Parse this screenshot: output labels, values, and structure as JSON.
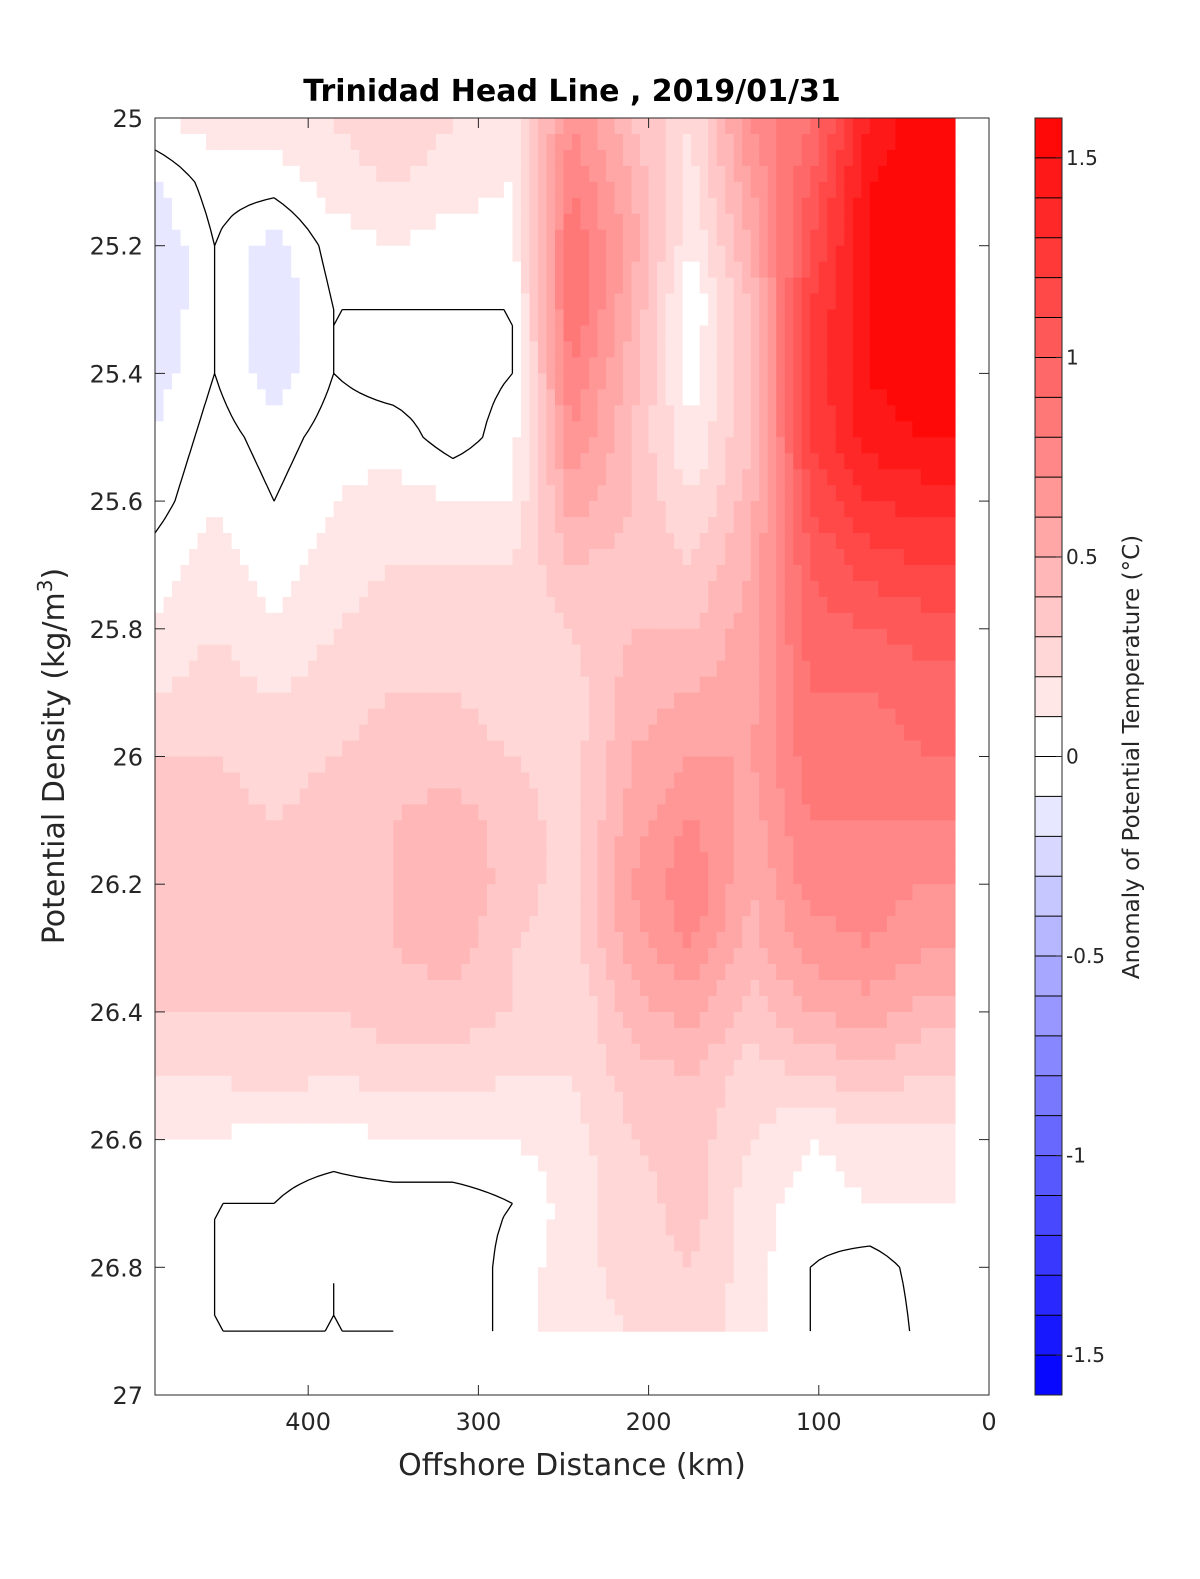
{
  "chart_data": {
    "type": "heatmap",
    "subtype": "filled-contour",
    "title": "Trinidad Head Line , 2019/01/31",
    "xlabel": "Offshore Distance (km)",
    "ylabel_base": "Potential Density (kg/m",
    "ylabel_sup": "3",
    "ylabel_close": ")",
    "xlim": [
      490,
      0
    ],
    "ylim": [
      25,
      27
    ],
    "x_reversed": true,
    "y_reversed": true,
    "xticks": [
      400,
      300,
      200,
      100,
      0
    ],
    "yticks": [
      25,
      25.2,
      25.4,
      25.6,
      25.8,
      26,
      26.2,
      26.4,
      26.6,
      26.8,
      27
    ],
    "ytick_labels": [
      "25",
      "25.2",
      "25.4",
      "25.6",
      "25.8",
      "26",
      "26.2",
      "26.4",
      "26.6",
      "26.8",
      "27"
    ],
    "data_x_range": [
      490,
      20
    ],
    "data_y_range": [
      25,
      26.9
    ],
    "x_nodes": [
      490,
      455,
      420,
      385,
      350,
      315,
      280,
      245,
      210,
      175,
      140,
      105,
      70,
      35
    ],
    "y_nodes": [
      25.0,
      25.1,
      25.2,
      25.3,
      25.4,
      25.5,
      25.6,
      25.7,
      25.8,
      25.9,
      26.0,
      26.1,
      26.2,
      26.3,
      26.4,
      26.5,
      26.6,
      26.7,
      26.8,
      26.9
    ],
    "values": [
      [
        0.1,
        0.15,
        0.15,
        0.2,
        0.3,
        0.2,
        0.1,
        0.7,
        0.4,
        0.2,
        0.7,
        0.9,
        1.4,
        1.6
      ],
      [
        -0.1,
        0.05,
        0.05,
        0.15,
        0.2,
        0.15,
        0.1,
        0.8,
        0.5,
        0.15,
        0.6,
        1.0,
        1.5,
        1.6
      ],
      [
        -0.2,
        0.0,
        -0.15,
        0.05,
        0.1,
        0.05,
        0.05,
        0.9,
        0.55,
        0.1,
        0.5,
        1.1,
        1.5,
        1.6
      ],
      [
        -0.2,
        0.0,
        -0.2,
        0.0,
        0.0,
        0.0,
        0.0,
        0.9,
        0.5,
        0.0,
        0.4,
        1.2,
        1.5,
        1.6
      ],
      [
        -0.15,
        0.0,
        -0.15,
        0.0,
        -0.05,
        -0.05,
        0.0,
        0.8,
        0.45,
        0.05,
        0.4,
        1.2,
        1.5,
        1.6
      ],
      [
        -0.1,
        0.05,
        -0.05,
        0.05,
        0.05,
        -0.05,
        0.05,
        0.7,
        0.4,
        0.1,
        0.4,
        1.2,
        1.45,
        1.5
      ],
      [
        -0.05,
        0.1,
        0.0,
        0.1,
        0.15,
        0.1,
        0.1,
        0.55,
        0.4,
        0.2,
        0.45,
        1.1,
        1.3,
        1.35
      ],
      [
        0.05,
        0.15,
        0.05,
        0.15,
        0.2,
        0.2,
        0.2,
        0.4,
        0.35,
        0.3,
        0.5,
        1.0,
        1.15,
        1.2
      ],
      [
        0.1,
        0.2,
        0.1,
        0.2,
        0.25,
        0.25,
        0.2,
        0.3,
        0.4,
        0.4,
        0.55,
        0.95,
        1.0,
        1.05
      ],
      [
        0.2,
        0.25,
        0.2,
        0.25,
        0.3,
        0.3,
        0.25,
        0.25,
        0.45,
        0.5,
        0.55,
        0.9,
        0.9,
        0.95
      ],
      [
        0.3,
        0.3,
        0.25,
        0.3,
        0.35,
        0.35,
        0.3,
        0.25,
        0.5,
        0.6,
        0.6,
        0.85,
        0.85,
        0.9
      ],
      [
        0.35,
        0.35,
        0.3,
        0.35,
        0.4,
        0.45,
        0.35,
        0.25,
        0.55,
        0.7,
        0.55,
        0.8,
        0.8,
        0.8
      ],
      [
        0.4,
        0.35,
        0.35,
        0.4,
        0.4,
        0.5,
        0.35,
        0.25,
        0.6,
        0.8,
        0.5,
        0.75,
        0.75,
        0.7
      ],
      [
        0.4,
        0.35,
        0.35,
        0.35,
        0.4,
        0.45,
        0.3,
        0.25,
        0.55,
        0.7,
        0.45,
        0.65,
        0.7,
        0.6
      ],
      [
        0.3,
        0.3,
        0.3,
        0.3,
        0.35,
        0.35,
        0.3,
        0.2,
        0.45,
        0.55,
        0.35,
        0.5,
        0.55,
        0.45
      ],
      [
        0.2,
        0.2,
        0.25,
        0.2,
        0.25,
        0.25,
        0.2,
        0.2,
        0.35,
        0.4,
        0.25,
        0.3,
        0.35,
        0.3
      ],
      [
        0.1,
        0.1,
        0.05,
        0.05,
        0.1,
        0.1,
        0.1,
        0.15,
        0.3,
        0.35,
        0.2,
        0.1,
        0.15,
        0.15
      ],
      [
        0.05,
        0.0,
        0.0,
        -0.05,
        -0.05,
        -0.05,
        0.0,
        0.15,
        0.25,
        0.35,
        0.15,
        0.05,
        0.1,
        0.1
      ],
      [
        0.05,
        0.0,
        -0.05,
        0.0,
        -0.05,
        -0.1,
        0.05,
        0.15,
        0.25,
        0.3,
        0.15,
        0.0,
        -0.05,
        0.05
      ],
      [
        0.05,
        0.0,
        0.0,
        0.0,
        0.0,
        -0.1,
        0.05,
        0.15,
        0.2,
        0.25,
        0.15,
        0.0,
        -0.1,
        0.05
      ]
    ],
    "zero_contour": true,
    "colorbar": {
      "label": "Anomaly of Potential Temperature (°C)",
      "range": [
        -1.6,
        1.6
      ],
      "step": 0.1,
      "ticks": [
        1.5,
        1,
        0.5,
        0,
        -0.5,
        -1,
        -1.5
      ],
      "tick_labels": [
        "1.5",
        "1",
        "0.5",
        "0",
        "-0.5",
        "-1",
        "-1.5"
      ],
      "colormap": "blue-white-red"
    },
    "grid": false,
    "legend": "none"
  }
}
